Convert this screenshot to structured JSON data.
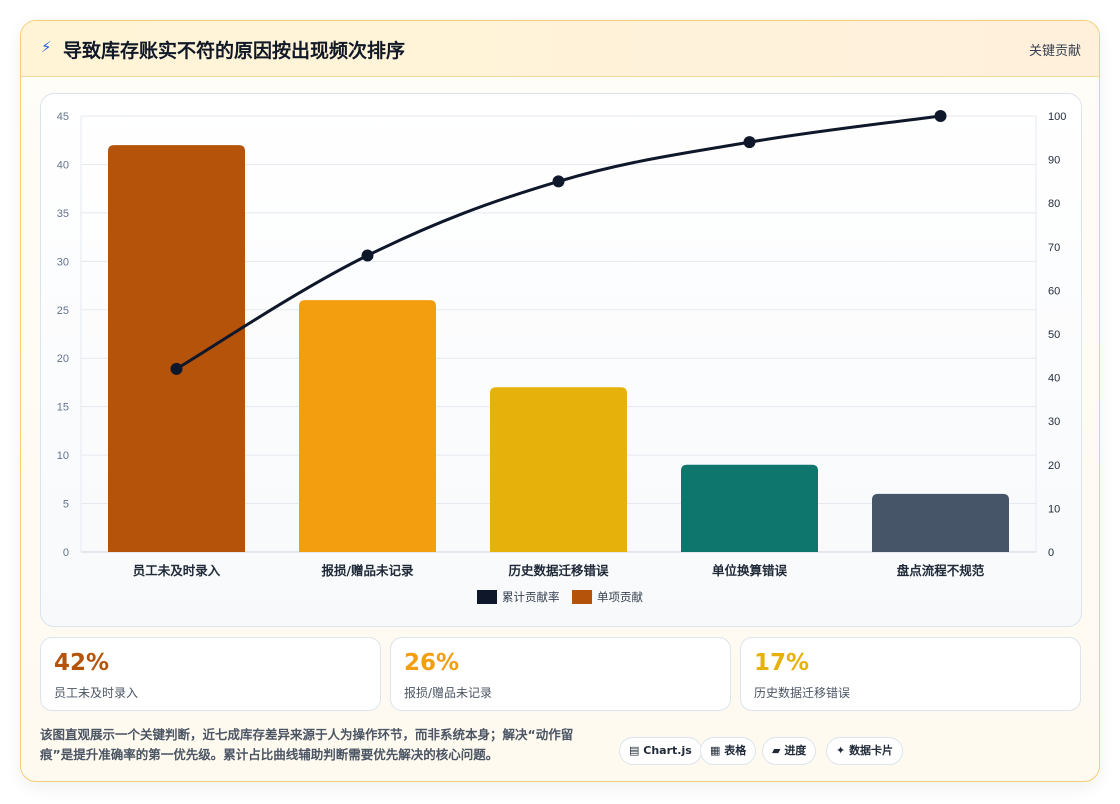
{
  "header": {
    "icon": "bolt-icon",
    "title": "导致库存账实不符的原因按出现频次排序",
    "tag": "关键贡献"
  },
  "chart_data": {
    "type": "bar",
    "categories": [
      "员工未及时录入",
      "报损/赠品未记录",
      "历史数据迁移错误",
      "单位换算错误",
      "盘点流程不规范"
    ],
    "series": [
      {
        "name": "单项贡献",
        "type": "bar",
        "axis": "left",
        "values": [
          42,
          26,
          17,
          9,
          6
        ],
        "colors": [
          "#b45309",
          "#f29e0f",
          "#e6b10b",
          "#0f766e",
          "#475569"
        ]
      },
      {
        "name": "累计贡献率",
        "type": "line",
        "axis": "right",
        "values": [
          42,
          68,
          85,
          94,
          100
        ],
        "color": "#0f172a"
      }
    ],
    "ylim": [
      0,
      45
    ],
    "yticks": [
      0,
      5,
      10,
      15,
      20,
      25,
      30,
      35,
      40,
      45
    ],
    "y2lim": [
      0,
      100
    ],
    "y2ticks": [
      0,
      10,
      20,
      30,
      40,
      50,
      60,
      70,
      80,
      90,
      100
    ],
    "legend": [
      "累计贡献率",
      "单项贡献"
    ],
    "legend_position": "bottom",
    "grid": true
  },
  "stats": [
    {
      "value": "42%",
      "label": "员工未及时录入",
      "color": "#b45309"
    },
    {
      "value": "26%",
      "label": "报损/赠品未记录",
      "color": "#f29e0f"
    },
    {
      "value": "17%",
      "label": "历史数据迁移错误",
      "color": "#e6b10b"
    }
  ],
  "description": "该图直观展示一个关键判断，近七成库存差异来源于人为操作环节，而非系统本身；解决“动作留痕”是提升准确率的第一优先级。累计占比曲线辅助判断需要优先解决的核心问题。",
  "chips": [
    {
      "icon": "▤",
      "label": "Chart.js"
    },
    {
      "icon": "▦",
      "label": "表格"
    },
    {
      "icon": "▰",
      "label": "进度"
    },
    {
      "icon": "✦",
      "label": "数据卡片"
    }
  ]
}
